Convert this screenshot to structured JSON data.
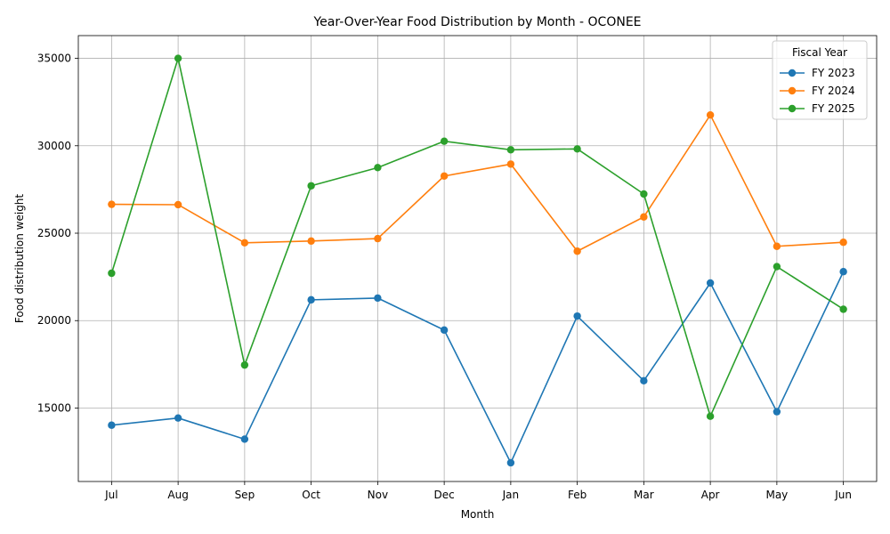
{
  "chart_data": {
    "type": "line",
    "title": "Year-Over-Year Food Distribution by Month - OCONEE",
    "xlabel": "Month",
    "ylabel": "Food distribution weight",
    "categories": [
      "Jul",
      "Aug",
      "Sep",
      "Oct",
      "Nov",
      "Dec",
      "Jan",
      "Feb",
      "Mar",
      "Apr",
      "May",
      "Jun"
    ],
    "ylim": [
      10800,
      36300
    ],
    "yticks": [
      15000,
      20000,
      25000,
      30000,
      35000
    ],
    "grid": true,
    "legend": {
      "title": "Fiscal Year",
      "placement": "top-right"
    },
    "series": [
      {
        "name": "FY 2023",
        "color": "#1f77b4",
        "values": [
          14020,
          14430,
          13220,
          21190,
          21290,
          19460,
          11870,
          20260,
          16560,
          22150,
          14790,
          22800
        ]
      },
      {
        "name": "FY 2024",
        "color": "#ff7f0e",
        "values": [
          26650,
          26630,
          24450,
          24550,
          24690,
          28270,
          28950,
          23970,
          25930,
          31760,
          24250,
          24480
        ]
      },
      {
        "name": "FY 2025",
        "color": "#2ca02c",
        "values": [
          22710,
          35000,
          17460,
          27710,
          28750,
          30260,
          29770,
          29820,
          27240,
          14530,
          23090,
          20650
        ]
      }
    ]
  }
}
